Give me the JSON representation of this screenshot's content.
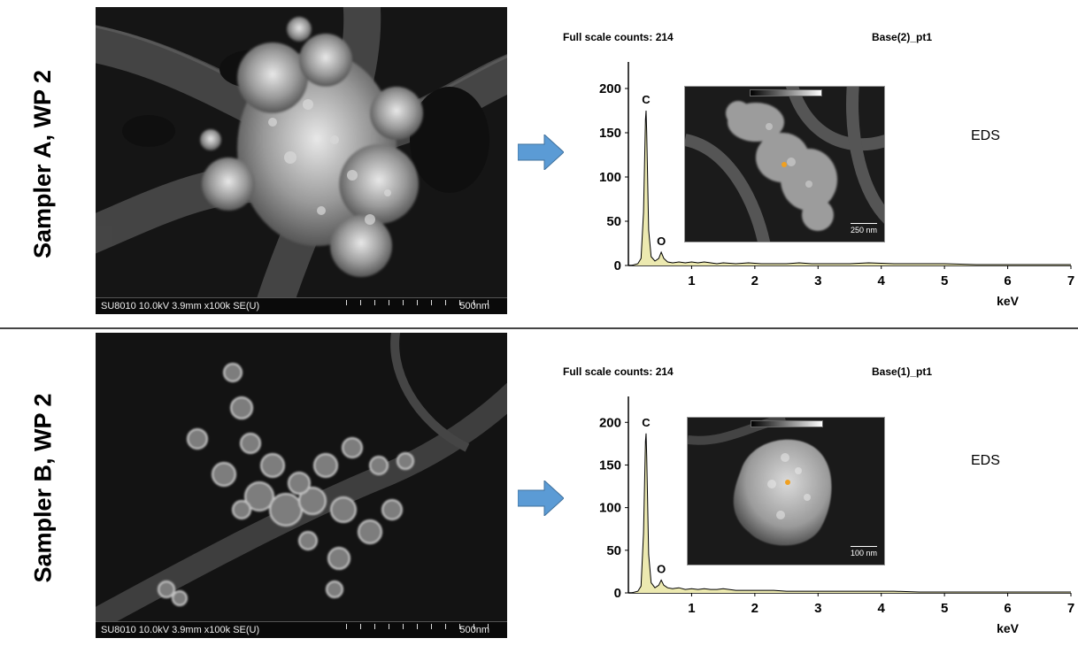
{
  "chart_data": [
    {
      "type": "line",
      "panel_label": "Sampler A, WP 2",
      "sem_info": "SU8010 10.0kV 3.9mm x100k SE(U)",
      "sem_scale": "500nm",
      "full_scale_counts": "Full scale counts: 214",
      "spectrum_name": "Base(2)_pt1",
      "method_label": "EDS",
      "inset_scale": "250 nm",
      "xlabel": "keV",
      "xlim": [
        0,
        7
      ],
      "ylim": [
        0,
        220
      ],
      "x_ticks": [
        1,
        2,
        3,
        4,
        5,
        6,
        7
      ],
      "y_ticks": [
        0,
        50,
        100,
        150,
        200
      ],
      "peak_labels": [
        {
          "text": "C",
          "x": 0.28,
          "y": 175
        },
        {
          "text": "O",
          "x": 0.52,
          "y": 15
        }
      ],
      "series": [
        {
          "x": [
            0.05,
            0.15,
            0.2,
            0.24,
            0.27,
            0.28,
            0.29,
            0.32,
            0.36,
            0.42,
            0.48,
            0.52,
            0.56,
            0.62,
            0.7,
            0.8,
            0.9,
            1.0,
            1.1,
            1.2,
            1.3,
            1.4,
            1.5,
            1.7,
            1.9,
            2.1,
            2.3,
            2.5,
            2.7,
            2.9,
            3.2,
            3.5,
            3.8,
            4.2,
            4.6,
            5.0,
            5.5,
            6.0,
            6.5,
            7.0
          ],
          "y": [
            0,
            2,
            8,
            60,
            165,
            175,
            150,
            40,
            10,
            5,
            8,
            15,
            8,
            4,
            3,
            4,
            3,
            4,
            3,
            4,
            3,
            2,
            3,
            2,
            3,
            2,
            2,
            2,
            3,
            2,
            2,
            2,
            3,
            2,
            2,
            2,
            1,
            1,
            1,
            1
          ]
        }
      ]
    },
    {
      "type": "line",
      "panel_label": "Sampler B, WP 2",
      "sem_info": "SU8010 10.0kV 3.9mm x100k SE(U)",
      "sem_scale": "500nm",
      "full_scale_counts": "Full scale counts: 214",
      "spectrum_name": "Base(1)_pt1",
      "method_label": "EDS",
      "inset_scale": "100 nm",
      "xlabel": "keV",
      "xlim": [
        0,
        7
      ],
      "ylim": [
        0,
        220
      ],
      "x_ticks": [
        1,
        2,
        3,
        4,
        5,
        6,
        7
      ],
      "y_ticks": [
        0,
        50,
        100,
        150,
        200
      ],
      "peak_labels": [
        {
          "text": "C",
          "x": 0.28,
          "y": 187
        },
        {
          "text": "O",
          "x": 0.52,
          "y": 15
        }
      ],
      "series": [
        {
          "x": [
            0.05,
            0.15,
            0.2,
            0.24,
            0.27,
            0.28,
            0.29,
            0.32,
            0.36,
            0.42,
            0.48,
            0.52,
            0.56,
            0.62,
            0.7,
            0.8,
            0.9,
            1.0,
            1.1,
            1.2,
            1.3,
            1.4,
            1.5,
            1.7,
            1.9,
            2.1,
            2.3,
            2.5,
            2.7,
            2.9,
            3.2,
            3.5,
            3.8,
            4.2,
            4.6,
            5.0,
            5.5,
            6.0,
            6.5,
            7.0
          ],
          "y": [
            0,
            2,
            8,
            70,
            178,
            187,
            160,
            45,
            12,
            6,
            9,
            15,
            9,
            6,
            5,
            6,
            4,
            5,
            4,
            5,
            4,
            4,
            5,
            3,
            3,
            3,
            3,
            2,
            2,
            2,
            2,
            2,
            2,
            2,
            1,
            1,
            1,
            1,
            1,
            1
          ]
        }
      ]
    }
  ]
}
